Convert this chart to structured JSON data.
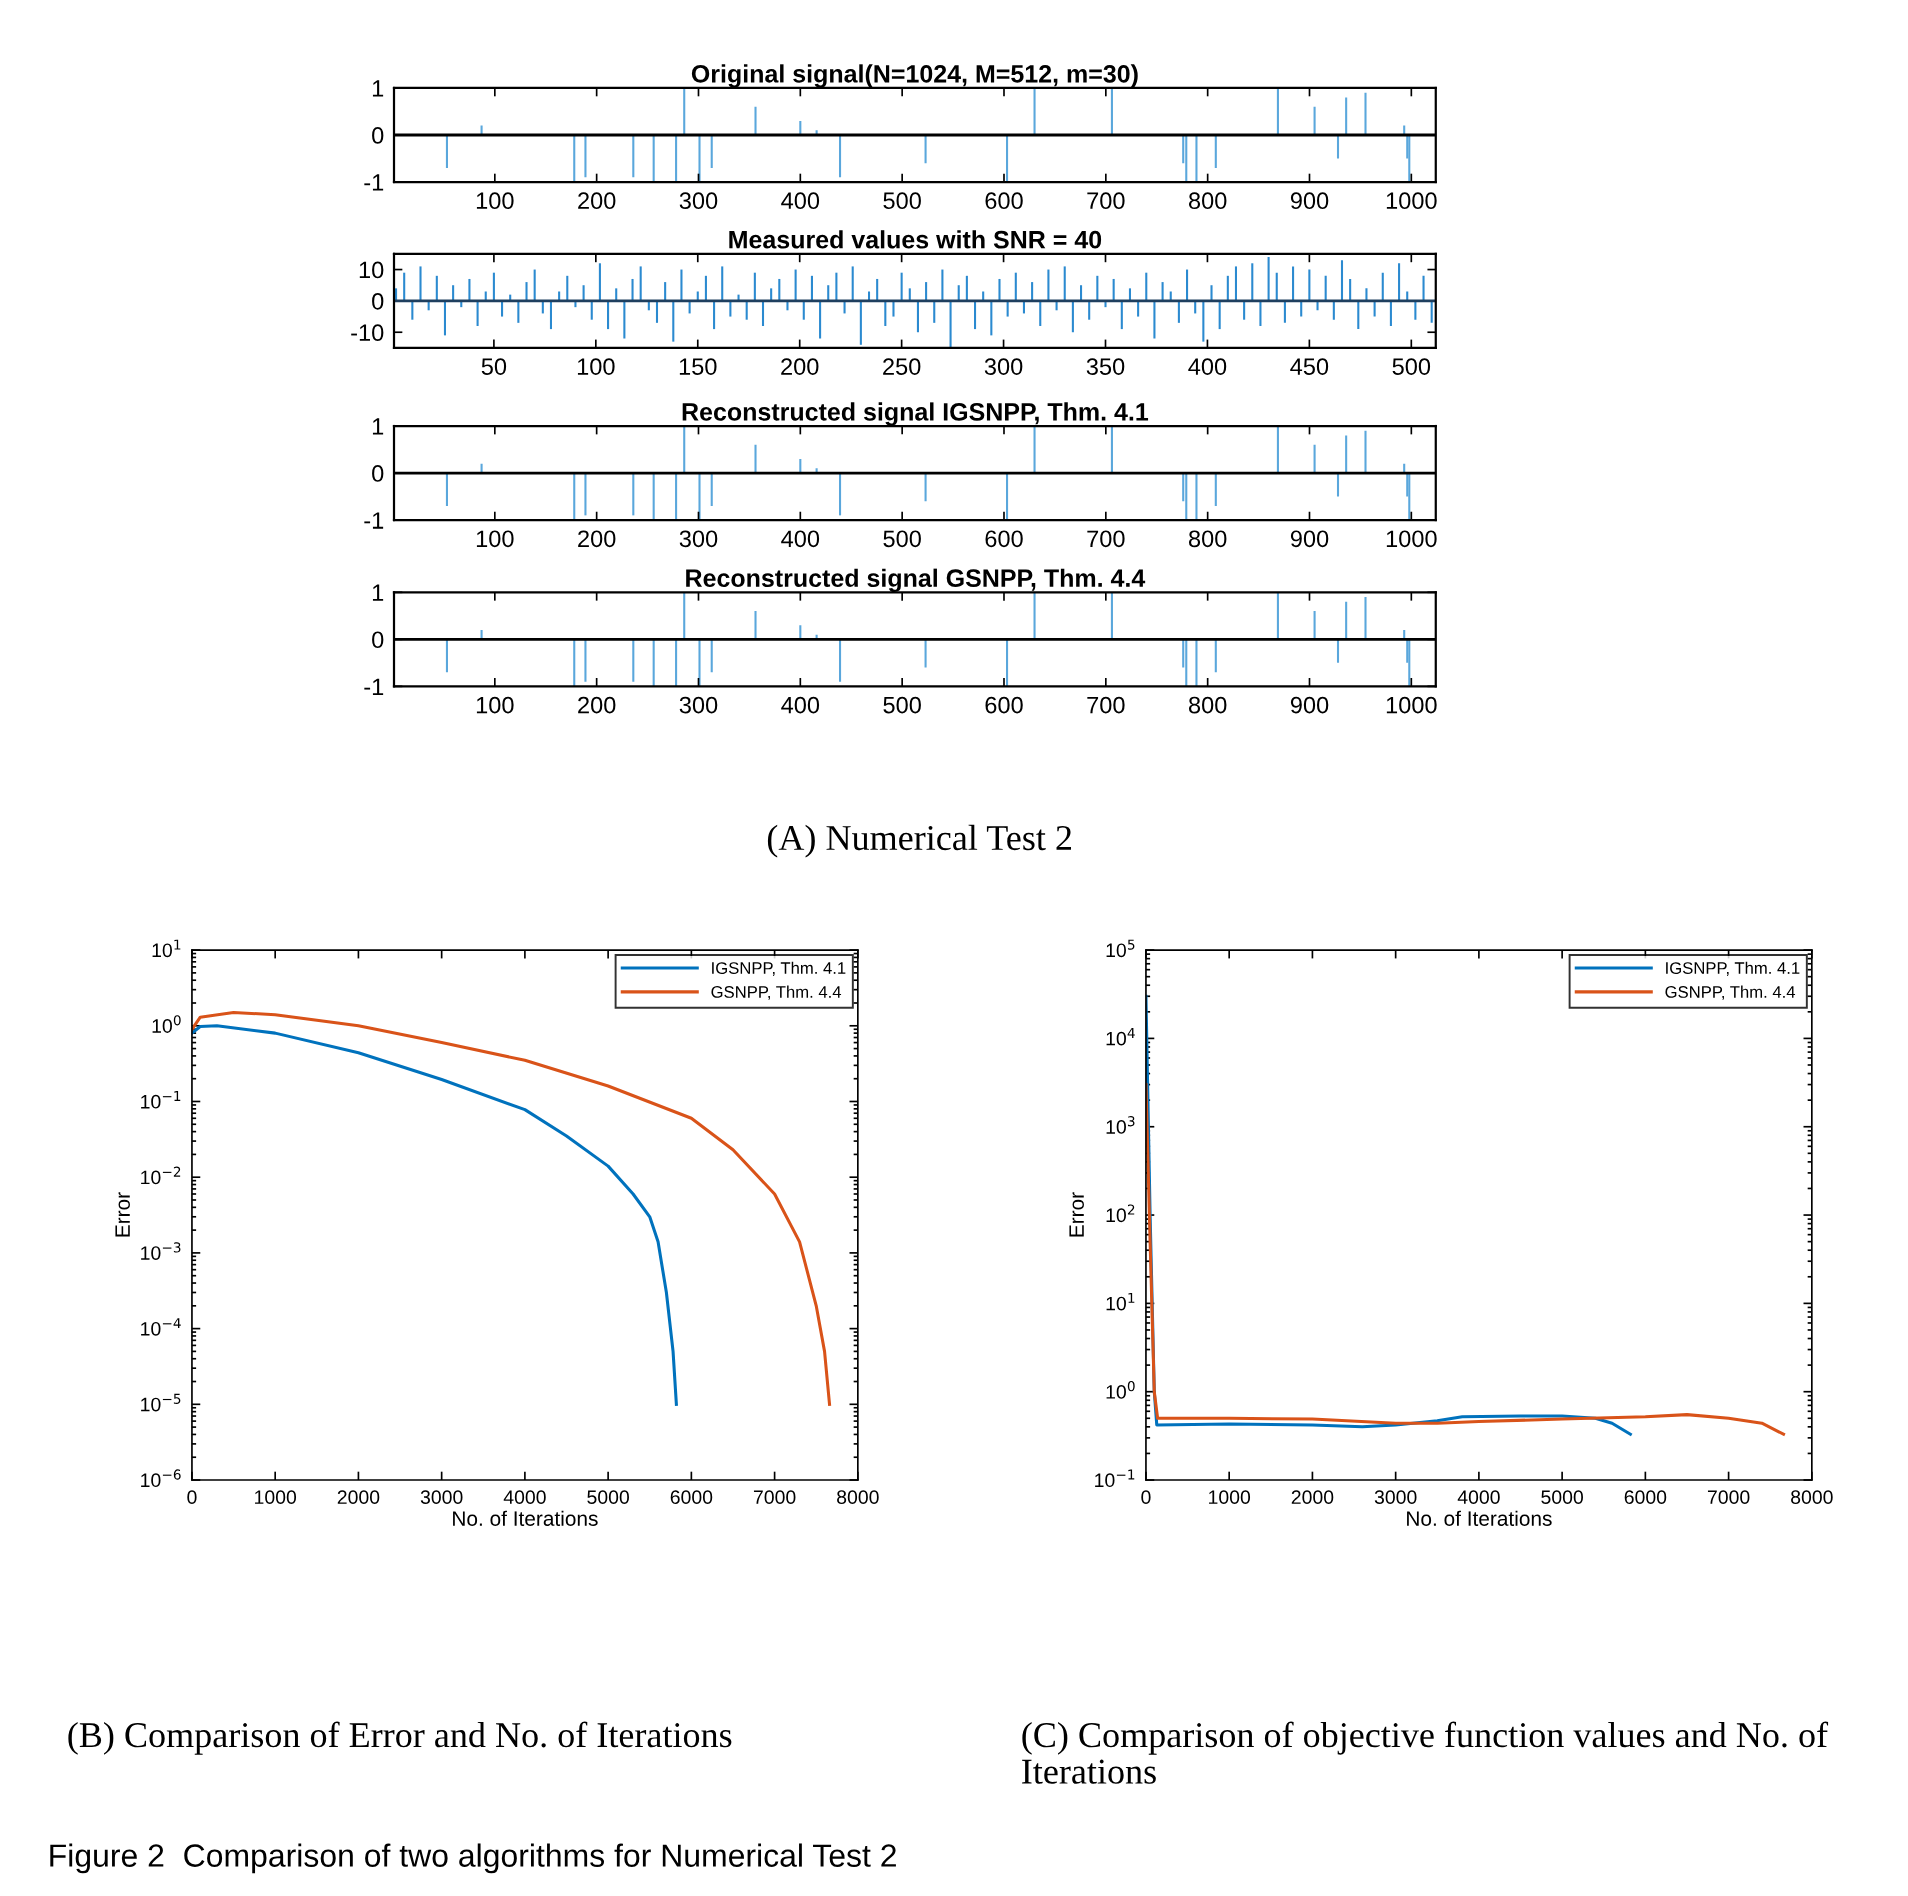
{
  "chart_data": [
    {
      "type": "bar",
      "title": "Original signal(N=1024, M=512, m=30)",
      "x": [
        53,
        87,
        178,
        189,
        236,
        256,
        278,
        286,
        301,
        313,
        356,
        400,
        416,
        439,
        523,
        603,
        630,
        706,
        776,
        779,
        789,
        808,
        869,
        905,
        928,
        936,
        955,
        993,
        996,
        998
      ],
      "values": [
        -0.7,
        0.2,
        -1,
        -0.9,
        -0.9,
        -1,
        -1,
        1,
        -1,
        -0.7,
        0.6,
        0.3,
        0.1,
        -0.9,
        -0.6,
        -1,
        1,
        1,
        -0.6,
        -1,
        -1,
        -0.7,
        1,
        0.6,
        -0.5,
        0.8,
        0.9,
        0.2,
        -0.5,
        -1
      ],
      "color": "#5aa7dc",
      "xlim": [
        1,
        1024
      ],
      "xticks": [
        100,
        200,
        300,
        400,
        500,
        600,
        700,
        800,
        900,
        1000
      ],
      "ylim": [
        -1,
        1
      ],
      "yticks": [
        -1,
        0,
        1
      ],
      "ref_lines": [
        {
          "axis": "y",
          "value": 0,
          "color": "#000000"
        }
      ]
    },
    {
      "type": "bar",
      "title": "Measured values with SNR = 40",
      "x": [
        2,
        6,
        10,
        14,
        18,
        22,
        26,
        30,
        34,
        38,
        42,
        46,
        50,
        54,
        58,
        62,
        66,
        70,
        74,
        78,
        82,
        86,
        90,
        94,
        98,
        102,
        106,
        110,
        114,
        118,
        122,
        126,
        130,
        134,
        138,
        142,
        146,
        150,
        154,
        158,
        162,
        166,
        170,
        174,
        178,
        182,
        186,
        190,
        194,
        198,
        202,
        206,
        210,
        214,
        218,
        222,
        226,
        230,
        234,
        238,
        242,
        246,
        250,
        254,
        258,
        262,
        266,
        270,
        274,
        278,
        282,
        286,
        290,
        294,
        298,
        302,
        306,
        310,
        314,
        318,
        322,
        326,
        330,
        334,
        338,
        342,
        346,
        350,
        354,
        358,
        362,
        366,
        370,
        374,
        378,
        382,
        386,
        390,
        394,
        398,
        402,
        406,
        410,
        414,
        418,
        422,
        426,
        430,
        434,
        438,
        442,
        446,
        450,
        454,
        458,
        462,
        466,
        470,
        474,
        478,
        482,
        486,
        490,
        494,
        498,
        502,
        506,
        510
      ],
      "values": [
        4,
        9,
        -6,
        11,
        -3,
        8,
        -11,
        5,
        -2,
        7,
        -8,
        3,
        9,
        -5,
        2,
        -7,
        6,
        10,
        -4,
        -9,
        3,
        8,
        -2,
        5,
        -6,
        12,
        -9,
        4,
        -12,
        7,
        11,
        -3,
        -7,
        6,
        -13,
        10,
        -4,
        3,
        8,
        -9,
        11,
        -5,
        2,
        -6,
        9,
        -8,
        4,
        7,
        -3,
        10,
        -6,
        8,
        -12,
        5,
        9,
        -4,
        11,
        -14,
        3,
        7,
        -8,
        -5,
        9,
        4,
        -10,
        6,
        -7,
        10,
        -15,
        5,
        8,
        -9,
        3,
        -11,
        7,
        -5,
        9,
        -4,
        6,
        -8,
        10,
        -3,
        11,
        -10,
        5,
        -6,
        8,
        -2,
        7,
        -9,
        4,
        -5,
        9,
        -12,
        6,
        3,
        -7,
        10,
        -4,
        -13,
        5,
        -9,
        8,
        11,
        -6,
        12,
        -8,
        14,
        9,
        -7,
        11,
        -5,
        10,
        -3,
        8,
        -6,
        13,
        7,
        -9,
        4,
        -5,
        9,
        -8,
        12,
        3,
        -6,
        8,
        -7
      ],
      "color": "#2b8ad0",
      "xlim": [
        1,
        512
      ],
      "xticks": [
        50,
        100,
        150,
        200,
        250,
        300,
        350,
        400,
        450,
        500
      ],
      "ylim": [
        -15,
        15
      ],
      "yticks": [
        -10,
        0,
        10
      ],
      "ref_lines": [
        {
          "axis": "y",
          "value": 0,
          "color": "#1f3f5f"
        }
      ]
    },
    {
      "type": "bar",
      "title": "Reconstructed signal IGSNPP, Thm. 4.1",
      "x": [
        53,
        87,
        178,
        189,
        236,
        256,
        278,
        286,
        301,
        313,
        356,
        400,
        416,
        439,
        523,
        603,
        630,
        706,
        776,
        779,
        789,
        808,
        869,
        905,
        928,
        936,
        955,
        993,
        996,
        998
      ],
      "values": [
        -0.7,
        0.2,
        -1,
        -0.9,
        -0.9,
        -1,
        -1,
        1,
        -1,
        -0.7,
        0.6,
        0.3,
        0.1,
        -0.9,
        -0.6,
        -1,
        1,
        1,
        -0.6,
        -1,
        -1,
        -0.7,
        1,
        0.6,
        -0.5,
        0.8,
        0.9,
        0.2,
        -0.5,
        -1
      ],
      "color": "#5aa7dc",
      "xlim": [
        1,
        1024
      ],
      "xticks": [
        100,
        200,
        300,
        400,
        500,
        600,
        700,
        800,
        900,
        1000
      ],
      "ylim": [
        -1,
        1
      ],
      "yticks": [
        -1,
        0,
        1
      ],
      "ref_lines": [
        {
          "axis": "y",
          "value": 0,
          "color": "#000000"
        }
      ]
    },
    {
      "type": "bar",
      "title": "Reconstructed signal GSNPP, Thm. 4.4",
      "x": [
        53,
        87,
        178,
        189,
        236,
        256,
        278,
        286,
        301,
        313,
        356,
        400,
        416,
        439,
        523,
        603,
        630,
        706,
        776,
        779,
        789,
        808,
        869,
        905,
        928,
        936,
        955,
        993,
        996,
        998
      ],
      "values": [
        -0.7,
        0.2,
        -1,
        -0.9,
        -0.9,
        -1,
        -1,
        1,
        -1,
        -0.7,
        0.6,
        0.3,
        0.1,
        -0.9,
        -0.6,
        -1,
        1,
        1,
        -0.6,
        -1,
        -1,
        -0.7,
        1,
        0.6,
        -0.5,
        0.8,
        0.9,
        0.2,
        -0.5,
        -1
      ],
      "color": "#5aa7dc",
      "xlim": [
        1,
        1024
      ],
      "xticks": [
        100,
        200,
        300,
        400,
        500,
        600,
        700,
        800,
        900,
        1000
      ],
      "ylim": [
        -1,
        1
      ],
      "yticks": [
        -1,
        0,
        1
      ],
      "ref_lines": [
        {
          "axis": "y",
          "value": 0,
          "color": "#000000"
        }
      ],
      "annotations": [
        "(A) Numerical Test 2"
      ]
    },
    {
      "type": "line",
      "xlabel": "No. of Iterations",
      "ylabel": "Error",
      "log": "y",
      "legend": "top right",
      "series": [
        {
          "name": "IGSNPP, Thm. 4.1",
          "color": "#0072bd",
          "x": [
            0,
            100,
            300,
            1000,
            2000,
            3000,
            4000,
            4500,
            5000,
            5300,
            5500,
            5600,
            5700,
            5780,
            5820
          ],
          "values": [
            0.8,
            0.98,
            1.0,
            0.8,
            0.44,
            0.195,
            0.078,
            0.035,
            0.014,
            0.006,
            0.003,
            0.0014,
            0.0003,
            5e-05,
            1e-05
          ]
        },
        {
          "name": "GSNPP, Thm. 4.4",
          "color": "#d95319",
          "x": [
            0,
            100,
            500,
            1000,
            2000,
            3000,
            4000,
            5000,
            6000,
            6500,
            7000,
            7300,
            7500,
            7600,
            7660
          ],
          "values": [
            0.9,
            1.3,
            1.5,
            1.4,
            1.0,
            0.6,
            0.35,
            0.16,
            0.06,
            0.023,
            0.006,
            0.0014,
            0.0002,
            5e-05,
            1e-05
          ]
        }
      ],
      "xlim": [
        0,
        8000
      ],
      "xticks": [
        0,
        1000,
        2000,
        3000,
        4000,
        5000,
        6000,
        7000,
        8000
      ],
      "ylim": [
        1e-06,
        10
      ],
      "yticks": [
        {
          "value": 1e-06,
          "label": "10$^{−6}$"
        },
        {
          "value": 1e-05,
          "label": "10$^{−5}$"
        },
        {
          "value": 0.0001,
          "label": "10$^{−4}$"
        },
        {
          "value": 0.001,
          "label": "10$^{−3}$"
        },
        {
          "value": 0.01,
          "label": "10$^{−2}$"
        },
        {
          "value": 0.1,
          "label": "10$^{−1}$"
        },
        {
          "value": 1,
          "label": "10$^{0}$"
        },
        {
          "value": 10,
          "label": "10$^{1}$"
        }
      ],
      "annotations": [
        "(B) Comparison of Error and No. of Iterations",
        "Figure 2  Comparison of two algorithms for Numerical Test 2"
      ]
    },
    {
      "type": "line",
      "xlabel": "No. of Iterations",
      "ylabel": "Error",
      "log": "y",
      "legend": "top right",
      "series": [
        {
          "name": "IGSNPP, Thm. 4.1",
          "color": "#0072bd",
          "x": [
            0,
            50,
            100,
            130,
            1000,
            2000,
            2600,
            3000,
            3500,
            3800,
            4500,
            5000,
            5400,
            5600,
            5820
          ],
          "values": [
            30000,
            100,
            1,
            0.42,
            0.43,
            0.42,
            0.4,
            0.42,
            0.47,
            0.52,
            0.53,
            0.53,
            0.5,
            0.44,
            0.33
          ]
        },
        {
          "name": "GSNPP, Thm. 4.4",
          "color": "#d95319",
          "x": [
            0,
            50,
            100,
            140,
            1000,
            2000,
            3000,
            3500,
            4000,
            5000,
            6000,
            6500,
            7000,
            7400,
            7660
          ],
          "values": [
            3000,
            50,
            1,
            0.5,
            0.5,
            0.49,
            0.44,
            0.44,
            0.46,
            0.49,
            0.52,
            0.55,
            0.5,
            0.44,
            0.33
          ]
        }
      ],
      "xlim": [
        0,
        8000
      ],
      "xticks": [
        0,
        1000,
        2000,
        3000,
        4000,
        5000,
        6000,
        7000,
        8000
      ],
      "ylim": [
        0.1,
        100000
      ],
      "yticks": [
        {
          "value": 0.1,
          "label": "10$^{−1}$"
        },
        {
          "value": 1,
          "label": "10$^{0}$"
        },
        {
          "value": 10,
          "label": "10$^{1}$"
        },
        {
          "value": 100,
          "label": "10$^{2}$"
        },
        {
          "value": 1000,
          "label": "10$^{3}$"
        },
        {
          "value": 10000,
          "label": "10$^{4}$"
        },
        {
          "value": 100000,
          "label": "10$^{5}$"
        }
      ],
      "annotations": [
        "(C) Comparison of objective function values and No. of Iterations"
      ]
    }
  ]
}
